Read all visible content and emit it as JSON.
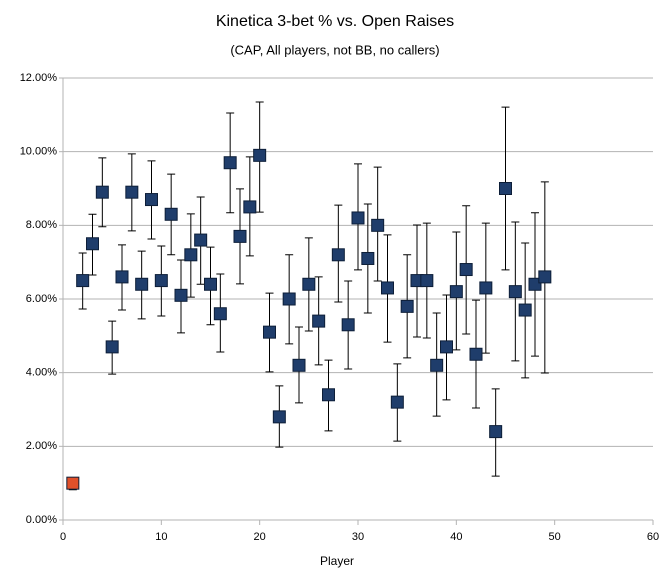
{
  "chart_data": {
    "type": "scatter",
    "title": "Kinetica 3-bet % vs. Open Raises",
    "subtitle": "(CAP, All players, not BB, no callers)",
    "x_label": "Player",
    "x": [
      1,
      2,
      3,
      4,
      5,
      6,
      7,
      8,
      9,
      10,
      11,
      12,
      13,
      14,
      15,
      16,
      17,
      18,
      19,
      20,
      21,
      22,
      23,
      24,
      25,
      26,
      27,
      28,
      29,
      30,
      31,
      32,
      33,
      34,
      35,
      36,
      37,
      38,
      39,
      40,
      41,
      42,
      43,
      44,
      45,
      46,
      47,
      48,
      49
    ],
    "values": [
      1.0,
      6.5,
      7.5,
      8.9,
      4.7,
      6.6,
      8.9,
      6.4,
      8.7,
      6.5,
      8.3,
      6.1,
      7.2,
      7.6,
      6.4,
      5.6,
      9.7,
      7.7,
      8.5,
      9.9,
      5.1,
      2.8,
      6.0,
      4.2,
      6.4,
      5.4,
      3.4,
      7.2,
      5.3,
      8.2,
      7.1,
      8.0,
      6.3,
      3.2,
      5.8,
      6.5,
      6.5,
      4.2,
      4.7,
      6.2,
      6.8,
      4.5,
      6.3,
      2.4,
      9.0,
      6.2,
      5.7,
      6.4,
      6.6
    ],
    "lower": [
      0.82,
      5.73,
      6.65,
      7.96,
      3.96,
      5.7,
      7.85,
      5.46,
      7.63,
      5.54,
      7.2,
      5.08,
      6.05,
      6.4,
      5.3,
      4.56,
      8.34,
      6.41,
      7.17,
      8.36,
      4.02,
      1.98,
      4.78,
      3.18,
      5.13,
      4.21,
      2.42,
      5.92,
      4.1,
      6.79,
      5.62,
      6.49,
      4.83,
      2.14,
      4.4,
      4.97,
      4.94,
      2.82,
      3.26,
      4.62,
      5.05,
      3.04,
      4.53,
      1.19,
      6.79,
      4.32,
      3.86,
      4.45,
      3.99
    ],
    "upper": [
      1.15,
      7.25,
      8.3,
      9.83,
      5.4,
      7.47,
      9.94,
      7.3,
      9.75,
      7.44,
      9.39,
      7.06,
      8.31,
      8.77,
      7.41,
      6.68,
      11.05,
      8.99,
      9.86,
      11.35,
      6.16,
      3.64,
      7.2,
      5.24,
      7.66,
      6.6,
      4.34,
      8.55,
      6.49,
      9.67,
      8.58,
      9.58,
      7.74,
      4.24,
      7.2,
      8.01,
      8.06,
      5.62,
      6.11,
      7.82,
      8.53,
      5.97,
      8.06,
      3.56,
      11.21,
      8.09,
      7.52,
      8.34,
      9.18
    ],
    "colors": [
      "#e0502a",
      "#1f3d6b",
      "#1f3d6b",
      "#1f3d6b",
      "#1f3d6b",
      "#1f3d6b",
      "#1f3d6b",
      "#1f3d6b",
      "#1f3d6b",
      "#1f3d6b",
      "#1f3d6b",
      "#1f3d6b",
      "#1f3d6b",
      "#1f3d6b",
      "#1f3d6b",
      "#1f3d6b",
      "#1f3d6b",
      "#1f3d6b",
      "#1f3d6b",
      "#1f3d6b",
      "#1f3d6b",
      "#1f3d6b",
      "#1f3d6b",
      "#1f3d6b",
      "#1f3d6b",
      "#1f3d6b",
      "#1f3d6b",
      "#1f3d6b",
      "#1f3d6b",
      "#1f3d6b",
      "#1f3d6b",
      "#1f3d6b",
      "#1f3d6b",
      "#1f3d6b",
      "#1f3d6b",
      "#1f3d6b",
      "#1f3d6b",
      "#1f3d6b",
      "#1f3d6b",
      "#1f3d6b",
      "#1f3d6b",
      "#1f3d6b",
      "#1f3d6b",
      "#1f3d6b",
      "#1f3d6b",
      "#1f3d6b",
      "#1f3d6b",
      "#1f3d6b",
      "#1f3d6b"
    ],
    "xlim": [
      0,
      60
    ],
    "xticks": [
      0,
      10,
      20,
      30,
      40,
      50,
      60
    ],
    "ylim": [
      0,
      12
    ],
    "yticks": [
      {
        "value": 0,
        "label": "0.00%"
      },
      {
        "value": 2,
        "label": "2.00%"
      },
      {
        "value": 4,
        "label": "4.00%"
      },
      {
        "value": 6,
        "label": "6.00%"
      },
      {
        "value": 8,
        "label": "8.00%"
      },
      {
        "value": 10,
        "label": "10.00%"
      },
      {
        "value": 12,
        "label": "12.00%"
      }
    ],
    "grid": true
  }
}
